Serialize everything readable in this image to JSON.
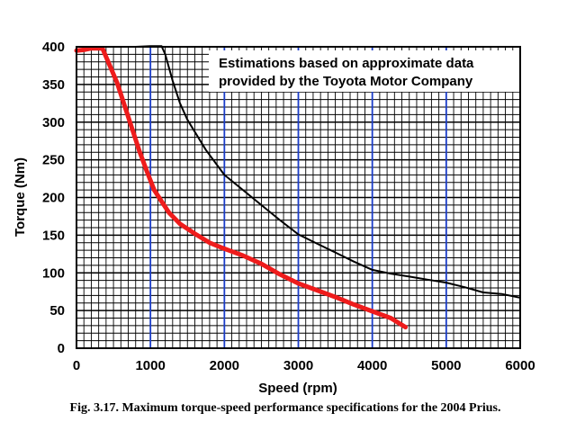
{
  "chart_data": {
    "type": "line",
    "xlabel": "Speed (rpm)",
    "ylabel": "Torque (Nm)",
    "xlim": [
      0,
      6000
    ],
    "ylim": [
      0,
      400
    ],
    "x_ticks": [
      0,
      1000,
      2000,
      3000,
      4000,
      5000,
      6000
    ],
    "y_ticks": [
      0,
      50,
      100,
      150,
      200,
      250,
      300,
      350,
      400
    ],
    "x_tick_labels": [
      "0",
      "1000",
      "2000",
      "3000",
      "4000",
      "5000",
      "6000"
    ],
    "y_tick_labels": [
      "0",
      "50",
      "100",
      "150",
      "200",
      "250",
      "300",
      "350",
      "400"
    ],
    "grid": true,
    "annotation_lines": [
      "Estimations based on approximate data",
      "provided by the Toyota Motor Company"
    ],
    "caption": "Fig. 3.17. Maximum torque-speed performance specifications for the 2004 Prius.",
    "series": [
      {
        "color": "#000000",
        "x": [
          200,
          500,
          800,
          1000,
          1100,
          1150,
          1200,
          1300,
          1400,
          1500,
          1750,
          2000,
          2250,
          2500,
          2750,
          3000,
          3250,
          3500,
          3750,
          4000,
          4250,
          4500,
          4750,
          5000,
          5250,
          5500,
          5750,
          6000
        ],
        "y": [
          400,
          400,
          400,
          401,
          401,
          401,
          390,
          355,
          325,
          303,
          263,
          230,
          210,
          190,
          170,
          151,
          139,
          127,
          115,
          104,
          99,
          95,
          91,
          87,
          81,
          74,
          72,
          67
        ]
      },
      {
        "color": "#ee1c1c",
        "x": [
          0,
          100,
          200,
          350,
          450,
          550,
          650,
          750,
          850,
          950,
          1050,
          1150,
          1250,
          1400,
          1600,
          1800,
          2000,
          2250,
          2500,
          2750,
          3000,
          3250,
          3500,
          3750,
          4000,
          4250,
          4450
        ],
        "y": [
          395,
          396,
          398,
          398,
          375,
          352,
          322,
          292,
          262,
          235,
          210,
          195,
          180,
          165,
          152,
          140,
          132,
          123,
          112,
          98,
          86,
          77,
          68,
          58,
          49,
          40,
          28
        ]
      }
    ]
  }
}
